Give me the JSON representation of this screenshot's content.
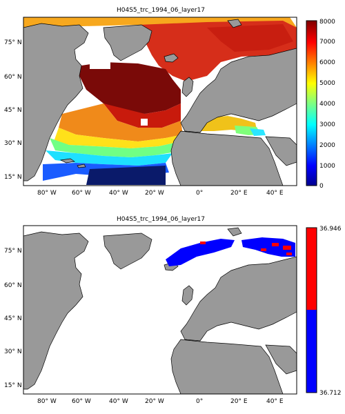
{
  "maps": [
    {
      "title": "H04S5_trc_1994_06_layer17",
      "lat_labels": [
        "75° N",
        "60° N",
        "45° N",
        "30° N",
        "15° N"
      ],
      "lon_labels": [
        "80° W",
        "60° W",
        "40° W",
        "20° W",
        "0°",
        "20° E",
        "40° E"
      ],
      "colorbar": {
        "type": "jet",
        "min": 0,
        "max": 8000,
        "ticks": [
          "8000",
          "7000",
          "6000",
          "5000",
          "4000",
          "3000",
          "2000",
          "1000",
          "0"
        ]
      }
    },
    {
      "title": "H04S5_trc_1994_06_layer17",
      "lat_labels": [
        "75° N",
        "60° N",
        "45° N",
        "30° N",
        "15° N"
      ],
      "lon_labels": [
        "80° W",
        "60° W",
        "40° W",
        "20° W",
        "0°",
        "20° E",
        "40° E"
      ],
      "colorbar": {
        "type": "two-class",
        "colors": [
          "#ff0000",
          "#0000ff"
        ],
        "ticks": [
          "36.946",
          "36.712"
        ]
      }
    }
  ],
  "colors": {
    "land": "#999999",
    "ocean": "#ffffff",
    "coast": "#000000"
  }
}
